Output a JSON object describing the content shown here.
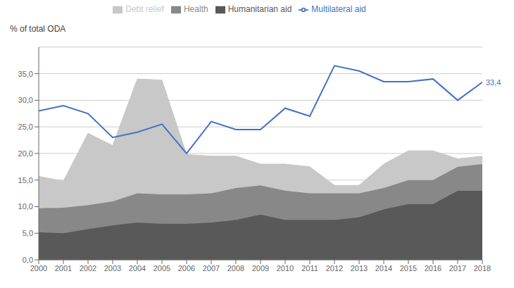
{
  "chart_data": {
    "type": "area",
    "stacked": true,
    "ylabel": "% of total ODA",
    "x": [
      2000,
      2001,
      2002,
      2003,
      2004,
      2005,
      2006,
      2007,
      2008,
      2009,
      2010,
      2011,
      2012,
      2013,
      2014,
      2015,
      2016,
      2017,
      2018
    ],
    "xlim": [
      2000,
      2018
    ],
    "xticks": [
      2000,
      2001,
      2002,
      2003,
      2004,
      2005,
      2006,
      2007,
      2008,
      2009,
      2010,
      2011,
      2012,
      2013,
      2014,
      2015,
      2016,
      2017,
      2018
    ],
    "ylim": [
      0,
      40
    ],
    "yticks": [
      {
        "value": 0.0,
        "label": "0,0"
      },
      {
        "value": 5.0,
        "label": "5,0"
      },
      {
        "value": 10.0,
        "label": "10,0"
      },
      {
        "value": 15.0,
        "label": "15,0"
      },
      {
        "value": 20.0,
        "label": "20,0"
      },
      {
        "value": 25.0,
        "label": "25,0"
      },
      {
        "value": 30.0,
        "label": "30,0"
      },
      {
        "value": 35.0,
        "label": "35,0"
      }
    ],
    "grid": true,
    "legend": "top",
    "series": [
      {
        "name": "Humanitarian aid",
        "color": "#595959",
        "values": [
          5.2,
          5.0,
          5.8,
          6.5,
          7.0,
          6.8,
          6.8,
          7.0,
          7.5,
          8.5,
          7.5,
          7.5,
          7.5,
          8.0,
          9.5,
          10.5,
          10.5,
          13.0,
          13.0
        ]
      },
      {
        "name": "Health",
        "color": "#888888",
        "values": [
          4.5,
          4.8,
          4.5,
          4.5,
          5.5,
          5.5,
          5.5,
          5.5,
          6.0,
          5.5,
          5.5,
          5.0,
          5.0,
          4.5,
          4.0,
          4.5,
          4.5,
          4.5,
          5.0
        ]
      },
      {
        "name": "Debt relief",
        "color": "#c8c8c8",
        "values": [
          6.0,
          5.0,
          13.5,
          10.5,
          21.5,
          21.5,
          7.5,
          7.0,
          6.0,
          4.0,
          5.0,
          5.0,
          1.5,
          1.5,
          4.5,
          5.5,
          5.5,
          1.5,
          1.5
        ]
      },
      {
        "name": "Multilateral aid",
        "type": "line",
        "color": "#4472c4",
        "values": [
          28.0,
          29.0,
          27.5,
          23.0,
          24.0,
          25.5,
          20.0,
          26.0,
          24.5,
          24.5,
          28.5,
          27.0,
          36.5,
          35.5,
          33.5,
          33.5,
          34.0,
          30.0,
          33.4
        ]
      }
    ],
    "annotations": [
      {
        "text": "33,4",
        "x": 2018,
        "y": 33.4
      }
    ]
  }
}
